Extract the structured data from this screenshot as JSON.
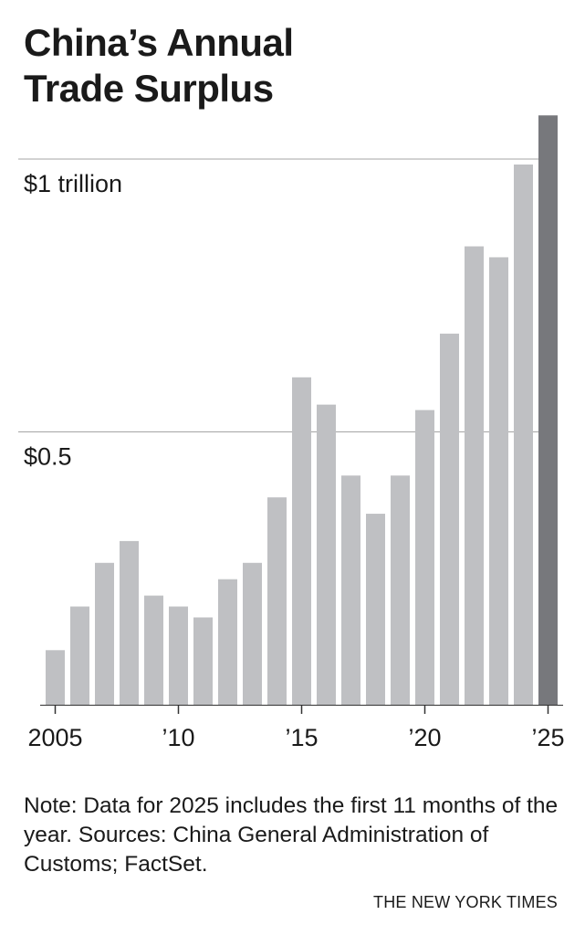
{
  "chart_data": {
    "type": "bar",
    "title_lines": [
      "China’s Annual",
      "Trade Surplus"
    ],
    "x": [
      2005,
      2006,
      2007,
      2008,
      2009,
      2010,
      2011,
      2012,
      2013,
      2014,
      2015,
      2016,
      2017,
      2018,
      2019,
      2020,
      2021,
      2022,
      2023,
      2024,
      2025
    ],
    "values": [
      0.1,
      0.18,
      0.26,
      0.3,
      0.2,
      0.18,
      0.16,
      0.23,
      0.26,
      0.38,
      0.6,
      0.55,
      0.42,
      0.35,
      0.42,
      0.54,
      0.68,
      0.84,
      0.82,
      0.99,
      1.08
    ],
    "highlight_index": 20,
    "ylim": [
      0,
      1.1
    ],
    "gridlines": [
      0.5,
      1.0
    ],
    "y_tick_labels": [
      {
        "value": 1.0,
        "label": "$1 trillion"
      },
      {
        "value": 0.5,
        "label": "$0.5"
      }
    ],
    "x_ticks": [
      {
        "year": 2005,
        "label": "2005"
      },
      {
        "year": 2010,
        "label": "’10"
      },
      {
        "year": 2015,
        "label": "’15"
      },
      {
        "year": 2020,
        "label": "’20"
      },
      {
        "year": 2025,
        "label": "’25"
      }
    ],
    "colors": {
      "bar": "#bfc0c3",
      "highlight": "#77787c",
      "grid": "#a5a5a5",
      "axis": "#333333"
    }
  },
  "note": "Note: Data for 2025 includes the first 11 months of the year. Sources: China General Administration of Customs; FactSet.",
  "credit": "THE NEW YORK TIMES"
}
